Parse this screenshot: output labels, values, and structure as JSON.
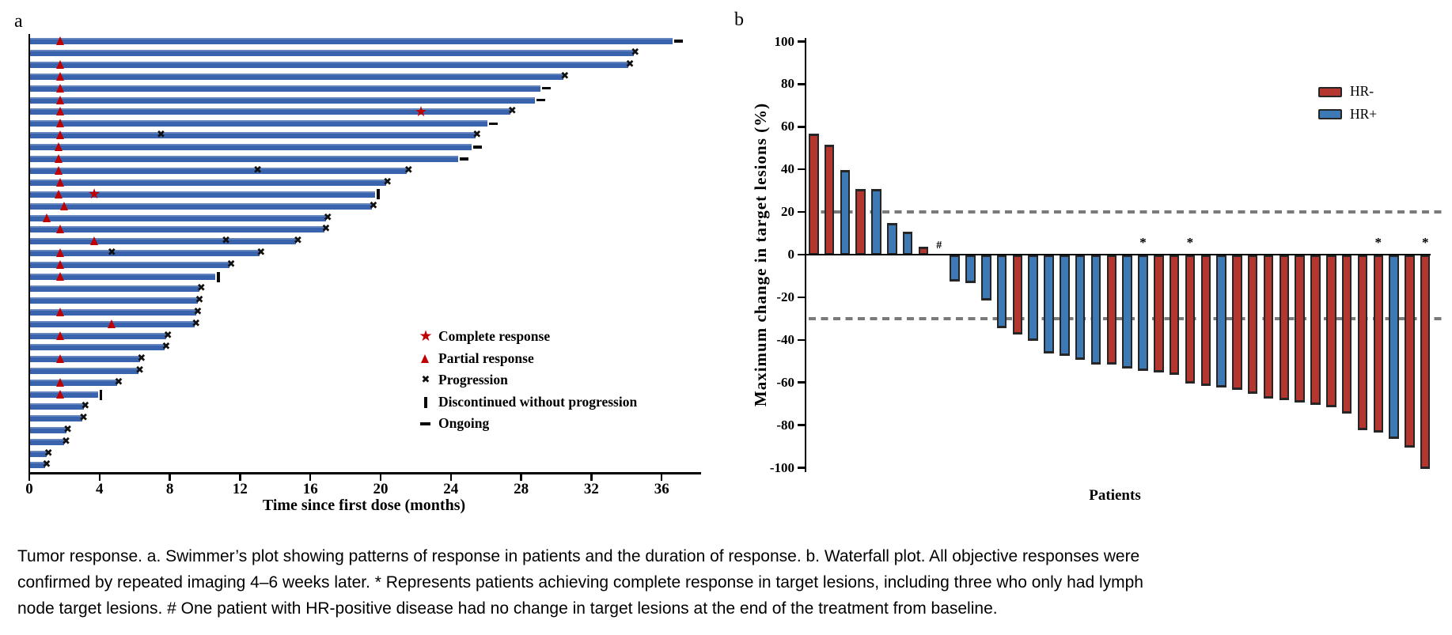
{
  "figure": {
    "panel_a_label": "a",
    "panel_b_label": "b",
    "caption_lines": [
      "Tumor response. a. Swimmer’s plot showing patterns of response in patients and the duration of response. b. Waterfall plot. All objective responses were",
      "confirmed by repeated imaging 4–6 weeks later. * Represents patients achieving complete response in target lesions, including three who only had lymph",
      "node target lesions. # One patient with HR-positive disease had no change in target lesions at the end of the treatment from baseline."
    ]
  },
  "colors": {
    "swimmer_bar": "#3a63ae",
    "hr_negative": "#b4362e",
    "hr_positive": "#3d7ab5",
    "marker_red": "#c00000",
    "axis_black": "#000000",
    "dashed_gray": "#7a7a7a"
  },
  "chart_data": [
    {
      "id": "swimmer",
      "type": "bar",
      "orientation": "horizontal",
      "xlabel": "Time since first dose (months)",
      "xlim": [
        0,
        38
      ],
      "xticks": [
        0,
        4,
        8,
        12,
        16,
        20,
        24,
        28,
        32,
        36
      ],
      "legend": [
        {
          "marker": "star",
          "label": "Complete response"
        },
        {
          "marker": "triangle",
          "label": "Partial response"
        },
        {
          "marker": "x",
          "label": "Progression"
        },
        {
          "marker": "bar",
          "label": "Discontinued without progression"
        },
        {
          "marker": "dash",
          "label": "Ongoing"
        }
      ],
      "patients": [
        {
          "duration": 36.6,
          "partial_response_at": 1.8,
          "end": "ongoing"
        },
        {
          "duration": 34.4,
          "end": "progression"
        },
        {
          "duration": 34.1,
          "partial_response_at": 1.8,
          "end": "progression"
        },
        {
          "duration": 30.4,
          "partial_response_at": 1.8,
          "end": "progression"
        },
        {
          "duration": 29.1,
          "partial_response_at": 1.8,
          "end": "ongoing"
        },
        {
          "duration": 28.8,
          "partial_response_at": 1.8,
          "end": "ongoing"
        },
        {
          "duration": 27.4,
          "partial_response_at": 1.8,
          "complete_response_at": 22.3,
          "end": "progression"
        },
        {
          "duration": 26.1,
          "partial_response_at": 1.8,
          "end": "ongoing"
        },
        {
          "duration": 25.4,
          "partial_response_at": 1.8,
          "progression_at": 7.5,
          "end": "progression"
        },
        {
          "duration": 25.2,
          "partial_response_at": 1.7,
          "end": "ongoing"
        },
        {
          "duration": 24.4,
          "partial_response_at": 1.7,
          "end": "ongoing"
        },
        {
          "duration": 21.5,
          "partial_response_at": 1.7,
          "progression_at": 13.0,
          "end": "progression"
        },
        {
          "duration": 20.3,
          "partial_response_at": 1.8,
          "end": "progression"
        },
        {
          "duration": 19.7,
          "partial_response_at": 1.7,
          "complete_response_at": 3.7,
          "end": "discontinued"
        },
        {
          "duration": 19.5,
          "partial_response_at": 2.0,
          "end": "progression"
        },
        {
          "duration": 16.9,
          "partial_response_at": 1.0,
          "end": "progression"
        },
        {
          "duration": 16.8,
          "partial_response_at": 1.8,
          "end": "progression"
        },
        {
          "duration": 15.2,
          "partial_response_at": 3.7,
          "progression_at": 11.2,
          "end": "progression"
        },
        {
          "duration": 13.1,
          "partial_response_at": 1.8,
          "progression_at": 4.7,
          "end": "progression"
        },
        {
          "duration": 11.4,
          "partial_response_at": 1.8,
          "end": "progression"
        },
        {
          "duration": 10.6,
          "partial_response_at": 1.8,
          "end": "discontinued"
        },
        {
          "duration": 9.7,
          "end": "progression"
        },
        {
          "duration": 9.6,
          "end": "progression"
        },
        {
          "duration": 9.5,
          "partial_response_at": 1.8,
          "end": "progression"
        },
        {
          "duration": 9.4,
          "partial_response_at": 4.7,
          "end": "progression"
        },
        {
          "duration": 7.8,
          "partial_response_at": 1.8,
          "end": "progression"
        },
        {
          "duration": 7.7,
          "end": "progression"
        },
        {
          "duration": 6.3,
          "partial_response_at": 1.8,
          "end": "progression"
        },
        {
          "duration": 6.2,
          "end": "progression"
        },
        {
          "duration": 5.0,
          "partial_response_at": 1.8,
          "end": "progression"
        },
        {
          "duration": 3.9,
          "partial_response_at": 1.8,
          "end": "discontinued"
        },
        {
          "duration": 3.1,
          "end": "progression"
        },
        {
          "duration": 3.0,
          "end": "progression"
        },
        {
          "duration": 2.1,
          "end": "progression"
        },
        {
          "duration": 2.0,
          "end": "progression"
        },
        {
          "duration": 1.0,
          "end": "progression"
        },
        {
          "duration": 0.9,
          "end": "progression"
        }
      ]
    },
    {
      "id": "waterfall",
      "type": "bar",
      "xlabel": "Patients",
      "ylabel": "Maximum change in target lesions (%)",
      "ylim": [
        -100,
        100
      ],
      "yticks": [
        100,
        80,
        60,
        40,
        20,
        0,
        -20,
        -40,
        -60,
        -80,
        -100
      ],
      "reference_lines": [
        20,
        -30
      ],
      "legend": [
        {
          "label": "HR-",
          "color_key": "hr_negative"
        },
        {
          "label": "HR+",
          "color_key": "hr_positive"
        }
      ],
      "bars": [
        {
          "value": 56,
          "group": "HR-"
        },
        {
          "value": 51,
          "group": "HR-"
        },
        {
          "value": 39,
          "group": "HR+"
        },
        {
          "value": 30,
          "group": "HR-"
        },
        {
          "value": 30,
          "group": "HR+"
        },
        {
          "value": 14,
          "group": "HR+"
        },
        {
          "value": 10,
          "group": "HR+"
        },
        {
          "value": 3,
          "group": "HR-"
        },
        {
          "value": 0,
          "group": "HR+",
          "annotation": "#"
        },
        {
          "value": -12,
          "group": "HR+"
        },
        {
          "value": -13,
          "group": "HR+"
        },
        {
          "value": -21,
          "group": "HR+"
        },
        {
          "value": -34,
          "group": "HR+"
        },
        {
          "value": -37,
          "group": "HR-"
        },
        {
          "value": -40,
          "group": "HR+"
        },
        {
          "value": -46,
          "group": "HR+"
        },
        {
          "value": -47,
          "group": "HR+"
        },
        {
          "value": -49,
          "group": "HR+"
        },
        {
          "value": -51,
          "group": "HR+"
        },
        {
          "value": -51,
          "group": "HR-"
        },
        {
          "value": -53,
          "group": "HR+"
        },
        {
          "value": -54,
          "group": "HR+",
          "annotation": "*"
        },
        {
          "value": -55,
          "group": "HR-"
        },
        {
          "value": -56,
          "group": "HR-"
        },
        {
          "value": -60,
          "group": "HR-",
          "annotation": "*"
        },
        {
          "value": -61,
          "group": "HR-"
        },
        {
          "value": -62,
          "group": "HR+"
        },
        {
          "value": -63,
          "group": "HR-"
        },
        {
          "value": -65,
          "group": "HR-"
        },
        {
          "value": -67,
          "group": "HR-"
        },
        {
          "value": -68,
          "group": "HR-"
        },
        {
          "value": -69,
          "group": "HR-"
        },
        {
          "value": -70,
          "group": "HR-"
        },
        {
          "value": -71,
          "group": "HR-"
        },
        {
          "value": -74,
          "group": "HR-"
        },
        {
          "value": -82,
          "group": "HR-"
        },
        {
          "value": -83,
          "group": "HR-",
          "annotation": "*"
        },
        {
          "value": -86,
          "group": "HR+"
        },
        {
          "value": -90,
          "group": "HR-"
        },
        {
          "value": -100,
          "group": "HR-",
          "annotation": "*"
        }
      ]
    }
  ]
}
